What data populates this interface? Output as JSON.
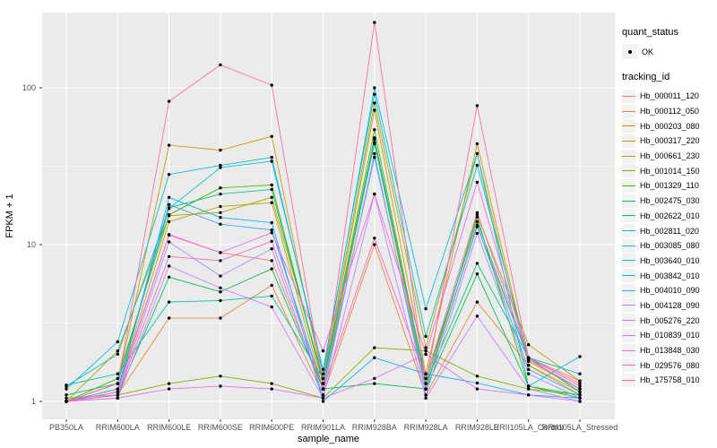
{
  "chart_data": {
    "type": "line",
    "xlabel": "sample_name",
    "ylabel": "FPKM + 1",
    "y_scale": "log10",
    "y_ticks": [
      {
        "value": 1,
        "label": "1"
      },
      {
        "value": 10,
        "label": "10"
      },
      {
        "value": 100,
        "label": "100"
      }
    ],
    "y_minor_ticks": [
      3.1623,
      31.623
    ],
    "ylim": [
      1,
      302
    ],
    "grid": "on",
    "legend_position": "right",
    "panel_bg": "#EBEBEB",
    "grid_color": "#FFFFFF",
    "point_color": "#000000",
    "tick_label_color": "#4D4D4D",
    "categories": [
      "PB350LA",
      "RRIM600LA",
      "RRIM600LE",
      "RRIM600SE",
      "RRIM600PE",
      "RRIM901LA",
      "RRIM928BA",
      "RRIM928LA",
      "RRIM928LE",
      "RRII105LA_Control",
      "RRII105LA_Stressed"
    ],
    "series": [
      {
        "name": "Hb_000011_120",
        "color": "#F8766D",
        "values": [
          1.0,
          1.2,
          11.5,
          8.9,
          7.9,
          1.2,
          47,
          1.2,
          13,
          1.9,
          1.35
        ]
      },
      {
        "name": "Hb_000112_050",
        "color": "#EA8331",
        "values": [
          1.0,
          1.1,
          3.4,
          3.4,
          5.5,
          1.1,
          10,
          1.1,
          4.3,
          1.7,
          1.1
        ]
      },
      {
        "name": "Hb_000203_080",
        "color": "#D89000",
        "values": [
          1.0,
          1.3,
          43,
          40,
          49,
          1.3,
          72,
          1.5,
          44,
          1.8,
          1.2
        ]
      },
      {
        "name": "Hb_000317_220",
        "color": "#C09B00",
        "values": [
          1.0,
          1.2,
          14,
          17.5,
          18.5,
          1.2,
          45,
          1.2,
          15.5,
          2.3,
          1.35
        ]
      },
      {
        "name": "Hb_000661_230",
        "color": "#A3A500",
        "values": [
          1.0,
          2.1,
          15.3,
          16,
          20,
          1.4,
          80,
          2.2,
          38,
          1.7,
          1.15
        ]
      },
      {
        "name": "Hb_001014_150",
        "color": "#7CAE00",
        "values": [
          1.05,
          1.1,
          1.3,
          1.45,
          1.3,
          1.05,
          2.2,
          2.1,
          1.45,
          1.2,
          1.1
        ]
      },
      {
        "name": "Hb_001329_110",
        "color": "#39B600",
        "values": [
          1.0,
          1.4,
          15.5,
          23,
          24,
          1.3,
          54,
          1.3,
          15,
          1.25,
          1.1
        ]
      },
      {
        "name": "Hb_002475_030",
        "color": "#00BB4E",
        "values": [
          1.0,
          1.1,
          6.2,
          5.0,
          7.0,
          1.2,
          1.3,
          1.2,
          6.5,
          1.25,
          1.05
        ]
      },
      {
        "name": "Hb_002622_010",
        "color": "#00BF7D",
        "values": [
          1.1,
          1.3,
          17.2,
          21,
          22.5,
          1.3,
          48,
          1.3,
          7.6,
          1.9,
          1.15
        ]
      },
      {
        "name": "Hb_002811_020",
        "color": "#00C1A3",
        "values": [
          1.27,
          1.5,
          4.3,
          4.4,
          4.7,
          1.4,
          44,
          1.4,
          14,
          1.85,
          1.2
        ]
      },
      {
        "name": "Hb_003085_080",
        "color": "#00BFC4",
        "values": [
          1.25,
          2.0,
          17,
          31,
          34,
          1.6,
          91,
          2.6,
          32,
          1.9,
          1.5
        ]
      },
      {
        "name": "Hb_003640_010",
        "color": "#00BAE0",
        "values": [
          1.2,
          2.4,
          28,
          32,
          36,
          1.5,
          100,
          3.9,
          38,
          1.25,
          1.93
        ]
      },
      {
        "name": "Hb_003842_010",
        "color": "#00B0F6",
        "values": [
          1.0,
          1.15,
          20,
          14.9,
          13.8,
          1.0,
          1.9,
          1.5,
          1.31,
          1.1,
          1.05
        ]
      },
      {
        "name": "Hb_004010_090",
        "color": "#35A2FF",
        "values": [
          1.0,
          1.2,
          18,
          13.5,
          12.4,
          1.2,
          36,
          1.2,
          13.3,
          1.6,
          1.1
        ]
      },
      {
        "name": "Hb_004128_090",
        "color": "#9590FF",
        "values": [
          1.0,
          1.1,
          10.4,
          6.3,
          9.4,
          1.1,
          38,
          1.1,
          11.8,
          1.5,
          1.05
        ]
      },
      {
        "name": "Hb_005276_220",
        "color": "#C77CFF",
        "values": [
          1.0,
          1.05,
          7.3,
          5.3,
          4.0,
          1.05,
          21,
          1.05,
          3.5,
          1.2,
          1.0
        ]
      },
      {
        "name": "Hb_010839_010",
        "color": "#E76BF3",
        "values": [
          1.0,
          1.05,
          1.2,
          1.25,
          1.2,
          1.05,
          1.4,
          2.0,
          1.2,
          1.1,
          1.0
        ]
      },
      {
        "name": "Hb_013848_030",
        "color": "#FA62DB",
        "values": [
          1.0,
          1.15,
          11.6,
          8.9,
          11.9,
          2.1,
          21,
          2.0,
          25,
          1.85,
          1.2
        ]
      },
      {
        "name": "Hb_029576_080",
        "color": "#FF62BC",
        "values": [
          1.0,
          1.1,
          8.4,
          7.9,
          10.5,
          1.2,
          11,
          1.4,
          16,
          1.9,
          1.25
        ]
      },
      {
        "name": "Hb_175758_010",
        "color": "#FF6A98",
        "values": [
          1.0,
          1.3,
          82,
          140,
          104,
          1.3,
          261,
          1.3,
          77,
          1.9,
          1.3
        ]
      }
    ],
    "legend": {
      "quant_status_title": "quant_status",
      "quant_status_items": [
        {
          "label": "OK",
          "marker": "black-point"
        }
      ],
      "tracking_id_title": "tracking_id"
    }
  }
}
